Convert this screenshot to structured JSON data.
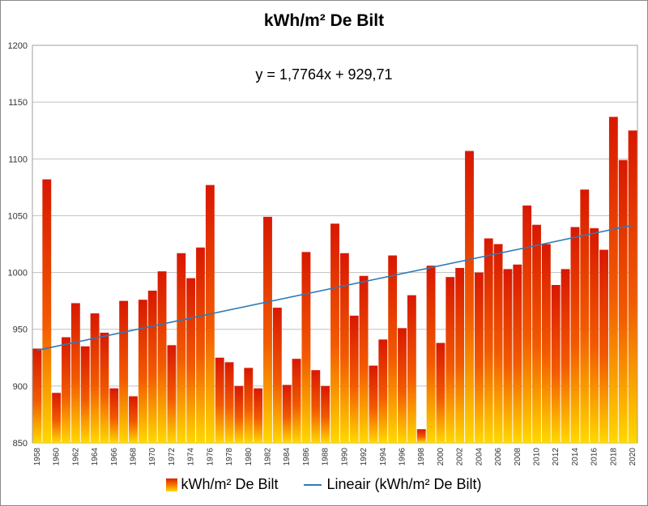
{
  "chart_data": {
    "type": "bar",
    "title": "kWh/m² De Bilt",
    "equation": "y = 1,7764x + 929,71",
    "ylim": [
      850,
      1200
    ],
    "yticks": [
      850,
      900,
      950,
      1000,
      1050,
      1100,
      1150,
      1200
    ],
    "grid": true,
    "trend": {
      "slope": 1.7764,
      "intercept": 929.71
    },
    "colors": {
      "bar_top": "#d81800",
      "bar_mid": "#f25a00",
      "bar_bottom": "#ffd800",
      "trend": "#2e7bb5",
      "grid": "#c0c0c0"
    },
    "categories": [
      1958,
      1959,
      1960,
      1961,
      1962,
      1963,
      1964,
      1965,
      1966,
      1967,
      1968,
      1969,
      1970,
      1971,
      1972,
      1973,
      1974,
      1975,
      1976,
      1977,
      1978,
      1979,
      1980,
      1981,
      1982,
      1983,
      1984,
      1985,
      1986,
      1987,
      1988,
      1989,
      1990,
      1991,
      1992,
      1993,
      1994,
      1995,
      1996,
      1997,
      1998,
      1999,
      2000,
      2001,
      2002,
      2003,
      2004,
      2005,
      2006,
      2007,
      2008,
      2009,
      2010,
      2011,
      2012,
      2013,
      2014,
      2015,
      2016,
      2017,
      2018,
      2019,
      2020
    ],
    "xtick_labels": [
      "1958",
      "1960",
      "1962",
      "1964",
      "1966",
      "1968",
      "1970",
      "1972",
      "1974",
      "1976",
      "1978",
      "1980",
      "1982",
      "1984",
      "1986",
      "1988",
      "1990",
      "1992",
      "1994",
      "1996",
      "1998",
      "2000",
      "2002",
      "2004",
      "2006",
      "2008",
      "2010",
      "2012",
      "2014",
      "2016",
      "2018",
      "2020"
    ],
    "series": [
      {
        "name": "kWh/m² De Bilt",
        "values": [
          933,
          1082,
          894,
          943,
          973,
          935,
          964,
          947,
          898,
          975,
          891,
          976,
          984,
          1001,
          936,
          1017,
          995,
          1022,
          1077,
          925,
          921,
          900,
          916,
          898,
          1049,
          969,
          901,
          924,
          1018,
          914,
          900,
          1043,
          1017,
          962,
          997,
          918,
          941,
          1015,
          951,
          980,
          862,
          1006,
          938,
          996,
          1004,
          1107,
          1000,
          1030,
          1025,
          1003,
          1007,
          1059,
          1042,
          1025,
          989,
          1003,
          1040,
          1073,
          1039,
          1020,
          1137,
          1099,
          1125
        ]
      }
    ],
    "legend": {
      "bars_label": "kWh/m² De Bilt",
      "trend_label": "Lineair (kWh/m² De Bilt)",
      "position": "bottom"
    }
  }
}
